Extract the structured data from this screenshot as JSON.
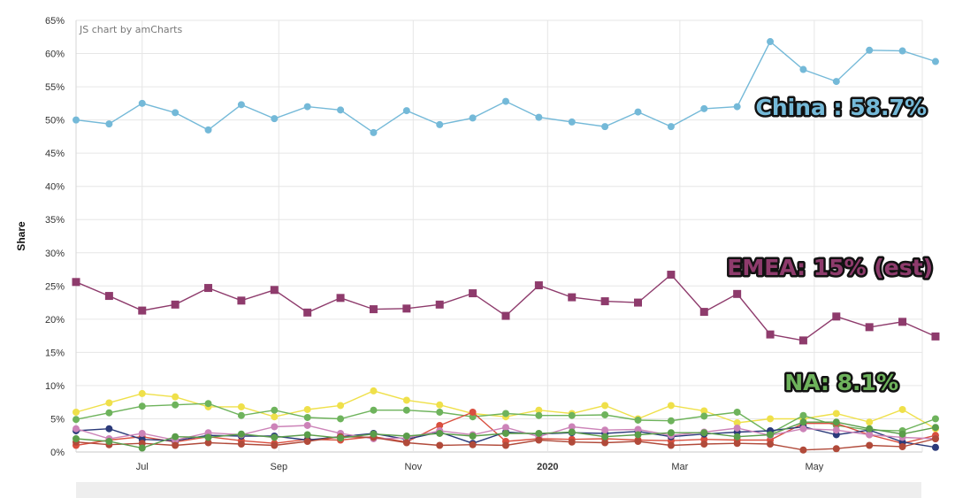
{
  "credit": "JS chart by amCharts",
  "chart_data": {
    "type": "line",
    "ylabel": "Share",
    "ylim": [
      0,
      65
    ],
    "yticks": [
      "0%",
      "5%",
      "10%",
      "15%",
      "20%",
      "25%",
      "30%",
      "35%",
      "40%",
      "45%",
      "50%",
      "55%",
      "60%",
      "65%"
    ],
    "x_start": "2019-06-01",
    "x_step_days": 15,
    "x_end": "2020-06-19",
    "xticks": [
      {
        "date": "2019-07-01",
        "label": "Jul",
        "bold": false
      },
      {
        "date": "2019-09-01",
        "label": "Sep",
        "bold": false
      },
      {
        "date": "2019-11-01",
        "label": "Nov",
        "bold": false
      },
      {
        "date": "2020-01-01",
        "label": "2020",
        "bold": true
      },
      {
        "date": "2020-03-01",
        "label": "Mar",
        "bold": false
      },
      {
        "date": "2020-05-01",
        "label": "May",
        "bold": false
      }
    ],
    "grid": true,
    "series": [
      {
        "name": "China",
        "color": "#74b9d8",
        "marker": "circle",
        "values": [
          50.0,
          49.4,
          52.5,
          51.1,
          48.5,
          52.3,
          50.2,
          52.0,
          51.5,
          48.1,
          51.4,
          49.3,
          50.3,
          52.8,
          50.4,
          49.7,
          49.0,
          51.2,
          49.0,
          51.7,
          52.0,
          61.8,
          57.6,
          55.8,
          60.5,
          60.4,
          58.8
        ]
      },
      {
        "name": "EMEA",
        "color": "#8e3b6c",
        "marker": "square",
        "values": [
          25.6,
          23.5,
          21.3,
          22.2,
          24.7,
          22.8,
          24.4,
          21.0,
          23.2,
          21.5,
          21.6,
          22.2,
          23.9,
          20.5,
          25.1,
          23.3,
          22.7,
          22.5,
          26.7,
          21.1,
          23.8,
          17.7,
          16.8,
          20.4,
          18.8,
          19.6,
          17.4
        ]
      },
      {
        "color": "#efe04a",
        "marker": "circle",
        "values": [
          6.0,
          7.4,
          8.8,
          8.3,
          6.8,
          6.8,
          5.3,
          6.4,
          7.0,
          9.2,
          7.8,
          7.1,
          5.8,
          5.3,
          6.3,
          5.8,
          7.0,
          5.0,
          7.0,
          6.2,
          4.4,
          5.0,
          5.0,
          5.8,
          4.5,
          6.4,
          3.5
        ]
      },
      {
        "color": "#6eb35c",
        "marker": "circle",
        "values": [
          4.9,
          5.9,
          6.9,
          7.1,
          7.3,
          5.5,
          6.3,
          5.2,
          5.0,
          6.3,
          6.3,
          6.0,
          5.3,
          5.8,
          5.5,
          5.5,
          5.6,
          4.8,
          4.7,
          5.4,
          6.0,
          2.8,
          5.5,
          4.0,
          3.3,
          3.2,
          5.0
        ]
      },
      {
        "color": "#d94f3f",
        "marker": "circle",
        "values": [
          1.0,
          1.8,
          2.3,
          1.5,
          2.3,
          1.7,
          1.3,
          1.9,
          1.8,
          2.3,
          1.5,
          4.0,
          6.0,
          1.6,
          2.0,
          1.9,
          2.0,
          1.8,
          1.7,
          1.9,
          1.8,
          1.8,
          4.3,
          4.3,
          2.6,
          1.3,
          2.5
        ]
      },
      {
        "color": "#2b3a7a",
        "marker": "circle",
        "values": [
          3.2,
          3.5,
          1.9,
          1.7,
          2.5,
          2.4,
          2.4,
          1.8,
          2.3,
          2.8,
          1.9,
          3.0,
          1.3,
          3.0,
          2.7,
          2.9,
          2.8,
          3.1,
          2.3,
          2.7,
          3.0,
          3.2,
          3.8,
          2.6,
          3.3,
          1.5,
          0.7
        ]
      },
      {
        "color": "#cc83b8",
        "marker": "circle",
        "values": [
          3.5,
          2.0,
          2.8,
          1.8,
          2.9,
          2.6,
          3.8,
          4.0,
          2.8,
          2.0,
          2.1,
          3.2,
          2.6,
          3.7,
          2.3,
          3.8,
          3.3,
          3.4,
          2.5,
          3.0,
          3.6,
          2.5,
          3.5,
          3.3,
          2.6,
          2.2,
          2.0
        ]
      },
      {
        "color": "#b14a3a",
        "marker": "circle",
        "values": [
          1.5,
          1.1,
          1.3,
          1.0,
          1.4,
          1.2,
          1.0,
          1.6,
          2.3,
          2.2,
          1.4,
          1.0,
          1.1,
          1.0,
          1.8,
          1.5,
          1.4,
          1.6,
          1.0,
          1.2,
          1.3,
          1.2,
          0.3,
          0.5,
          1.0,
          0.8,
          2.0
        ]
      },
      {
        "color": "#5a9d4a",
        "marker": "circle",
        "values": [
          2.0,
          1.6,
          0.6,
          2.3,
          2.2,
          2.7,
          2.2,
          2.6,
          2.1,
          2.7,
          2.4,
          2.8,
          2.4,
          2.8,
          2.8,
          3.0,
          2.3,
          2.6,
          2.9,
          2.9,
          2.3,
          2.6,
          4.5,
          4.5,
          3.5,
          2.7,
          3.7
        ]
      }
    ],
    "callouts": [
      {
        "text": "China : 58.7%",
        "color": "#74b9d8"
      },
      {
        "text": "EMEA: 15% (est)",
        "color": "#8e3b6c"
      },
      {
        "text": "NA: 8.1%",
        "color": "#6eb35c"
      }
    ]
  }
}
